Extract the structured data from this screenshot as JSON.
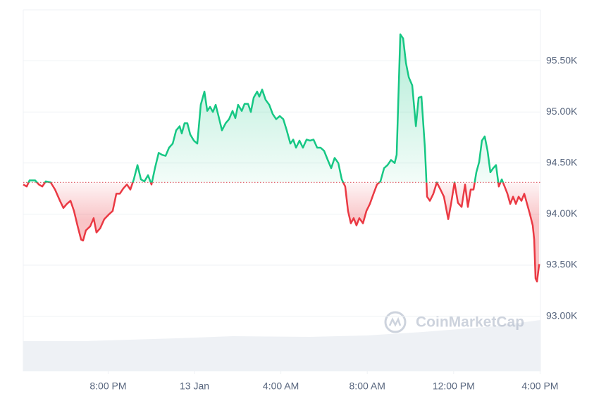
{
  "chart_data": {
    "type": "line",
    "watermark": "CoinMarketCap",
    "x": [
      16.07,
      16.23,
      16.36,
      16.62,
      16.79,
      16.95,
      17.11,
      17.34,
      17.54,
      17.77,
      17.93,
      18.09,
      18.26,
      18.42,
      18.58,
      18.75,
      18.84,
      18.97,
      19.17,
      19.33,
      19.46,
      19.63,
      19.82,
      20.05,
      20.21,
      20.38,
      20.54,
      20.7,
      20.87,
      21.03,
      21.19,
      21.36,
      21.52,
      21.68,
      21.85,
      22.01,
      22.17,
      22.34,
      22.5,
      22.66,
      22.82,
      22.99,
      23.15,
      23.31,
      23.41,
      23.54,
      23.67,
      23.8,
      23.97,
      24.13,
      24.29,
      24.46,
      24.59,
      24.72,
      24.85,
      24.98,
      25.11,
      25.27,
      25.44,
      25.6,
      25.76,
      25.89,
      26.02,
      26.19,
      26.32,
      26.48,
      26.61,
      26.74,
      26.9,
      27.0,
      27.13,
      27.29,
      27.46,
      27.62,
      27.78,
      27.95,
      28.11,
      28.27,
      28.44,
      28.57,
      28.7,
      28.86,
      29.02,
      29.19,
      29.35,
      29.51,
      29.68,
      29.84,
      30.0,
      30.17,
      30.33,
      30.49,
      30.66,
      30.82,
      30.98,
      31.11,
      31.24,
      31.37,
      31.5,
      31.63,
      31.8,
      31.96,
      32.12,
      32.29,
      32.45,
      32.61,
      32.78,
      32.94,
      33.1,
      33.27,
      33.36,
      33.53,
      33.66,
      33.79,
      33.92,
      34.08,
      34.25,
      34.38,
      34.51,
      34.67,
      34.77,
      34.9,
      35.06,
      35.22,
      35.39,
      35.55,
      35.75,
      35.88,
      36.04,
      36.2,
      36.37,
      36.53,
      36.66,
      36.79,
      36.92,
      37.05,
      37.18,
      37.31,
      37.44,
      37.57,
      37.7,
      37.83,
      37.96,
      38.09,
      38.23,
      38.36,
      38.49,
      38.62,
      38.75,
      38.88,
      39.01,
      39.14,
      39.27,
      39.4,
      39.53,
      39.66,
      39.73,
      39.79,
      39.86,
      39.96
    ],
    "series": [
      {
        "values": [
          94290,
          94270,
          94330,
          94330,
          94290,
          94270,
          94320,
          94310,
          94240,
          94130,
          94060,
          94100,
          94130,
          94030,
          93890,
          93750,
          93740,
          93840,
          93880,
          93960,
          93820,
          93860,
          93950,
          94000,
          94030,
          94200,
          94200,
          94250,
          94290,
          94240,
          94340,
          94480,
          94340,
          94320,
          94380,
          94290,
          94450,
          94600,
          94580,
          94570,
          94650,
          94690,
          94820,
          94860,
          94790,
          94890,
          94890,
          94780,
          94720,
          94690,
          95070,
          95200,
          95010,
          95050,
          95000,
          95070,
          94960,
          94820,
          94890,
          94930,
          95010,
          94940,
          95070,
          95010,
          95080,
          95080,
          95000,
          95140,
          95200,
          95150,
          95220,
          95120,
          95070,
          94980,
          94930,
          94960,
          94930,
          94820,
          94690,
          94730,
          94650,
          94720,
          94650,
          94730,
          94720,
          94730,
          94650,
          94650,
          94620,
          94530,
          94450,
          94550,
          94500,
          94340,
          94270,
          94030,
          93910,
          93960,
          93890,
          93960,
          93910,
          94030,
          94100,
          94200,
          94290,
          94320,
          94450,
          94480,
          94530,
          94500,
          94580,
          95760,
          95720,
          95480,
          95340,
          95260,
          94860,
          95140,
          95150,
          94650,
          94170,
          94130,
          94200,
          94310,
          94240,
          94170,
          93950,
          94100,
          94310,
          94110,
          94070,
          94290,
          94070,
          94240,
          94240,
          94410,
          94510,
          94720,
          94760,
          94620,
          94410,
          94450,
          94480,
          94270,
          94340,
          94270,
          94200,
          94100,
          94170,
          94100,
          94170,
          94130,
          94200,
          94100,
          94000,
          93890,
          93750,
          93370,
          93340,
          93510
        ]
      }
    ],
    "baseline": 94310,
    "up_color": "#16c784",
    "down_color": "#ea3943",
    "xlim": [
      16.07,
      40.02
    ],
    "xticks": [
      {
        "value": 20,
        "label": "8:00 PM"
      },
      {
        "value": 24,
        "label": "13 Jan"
      },
      {
        "value": 28,
        "label": "4:00 AM"
      },
      {
        "value": 32,
        "label": "8:00 AM"
      },
      {
        "value": 36,
        "label": "12:00 PM"
      },
      {
        "value": 40,
        "label": "4:00 PM"
      }
    ],
    "ylim": [
      92460,
      96000
    ],
    "yticks": [
      {
        "value": 93000,
        "label": "93.00K"
      },
      {
        "value": 93500,
        "label": "93.50K"
      },
      {
        "value": 94000,
        "label": "94.00K"
      },
      {
        "value": 94500,
        "label": "94.50K"
      },
      {
        "value": 95000,
        "label": "95.00K"
      },
      {
        "value": 95500,
        "label": "95.50K"
      }
    ],
    "grid": true
  }
}
